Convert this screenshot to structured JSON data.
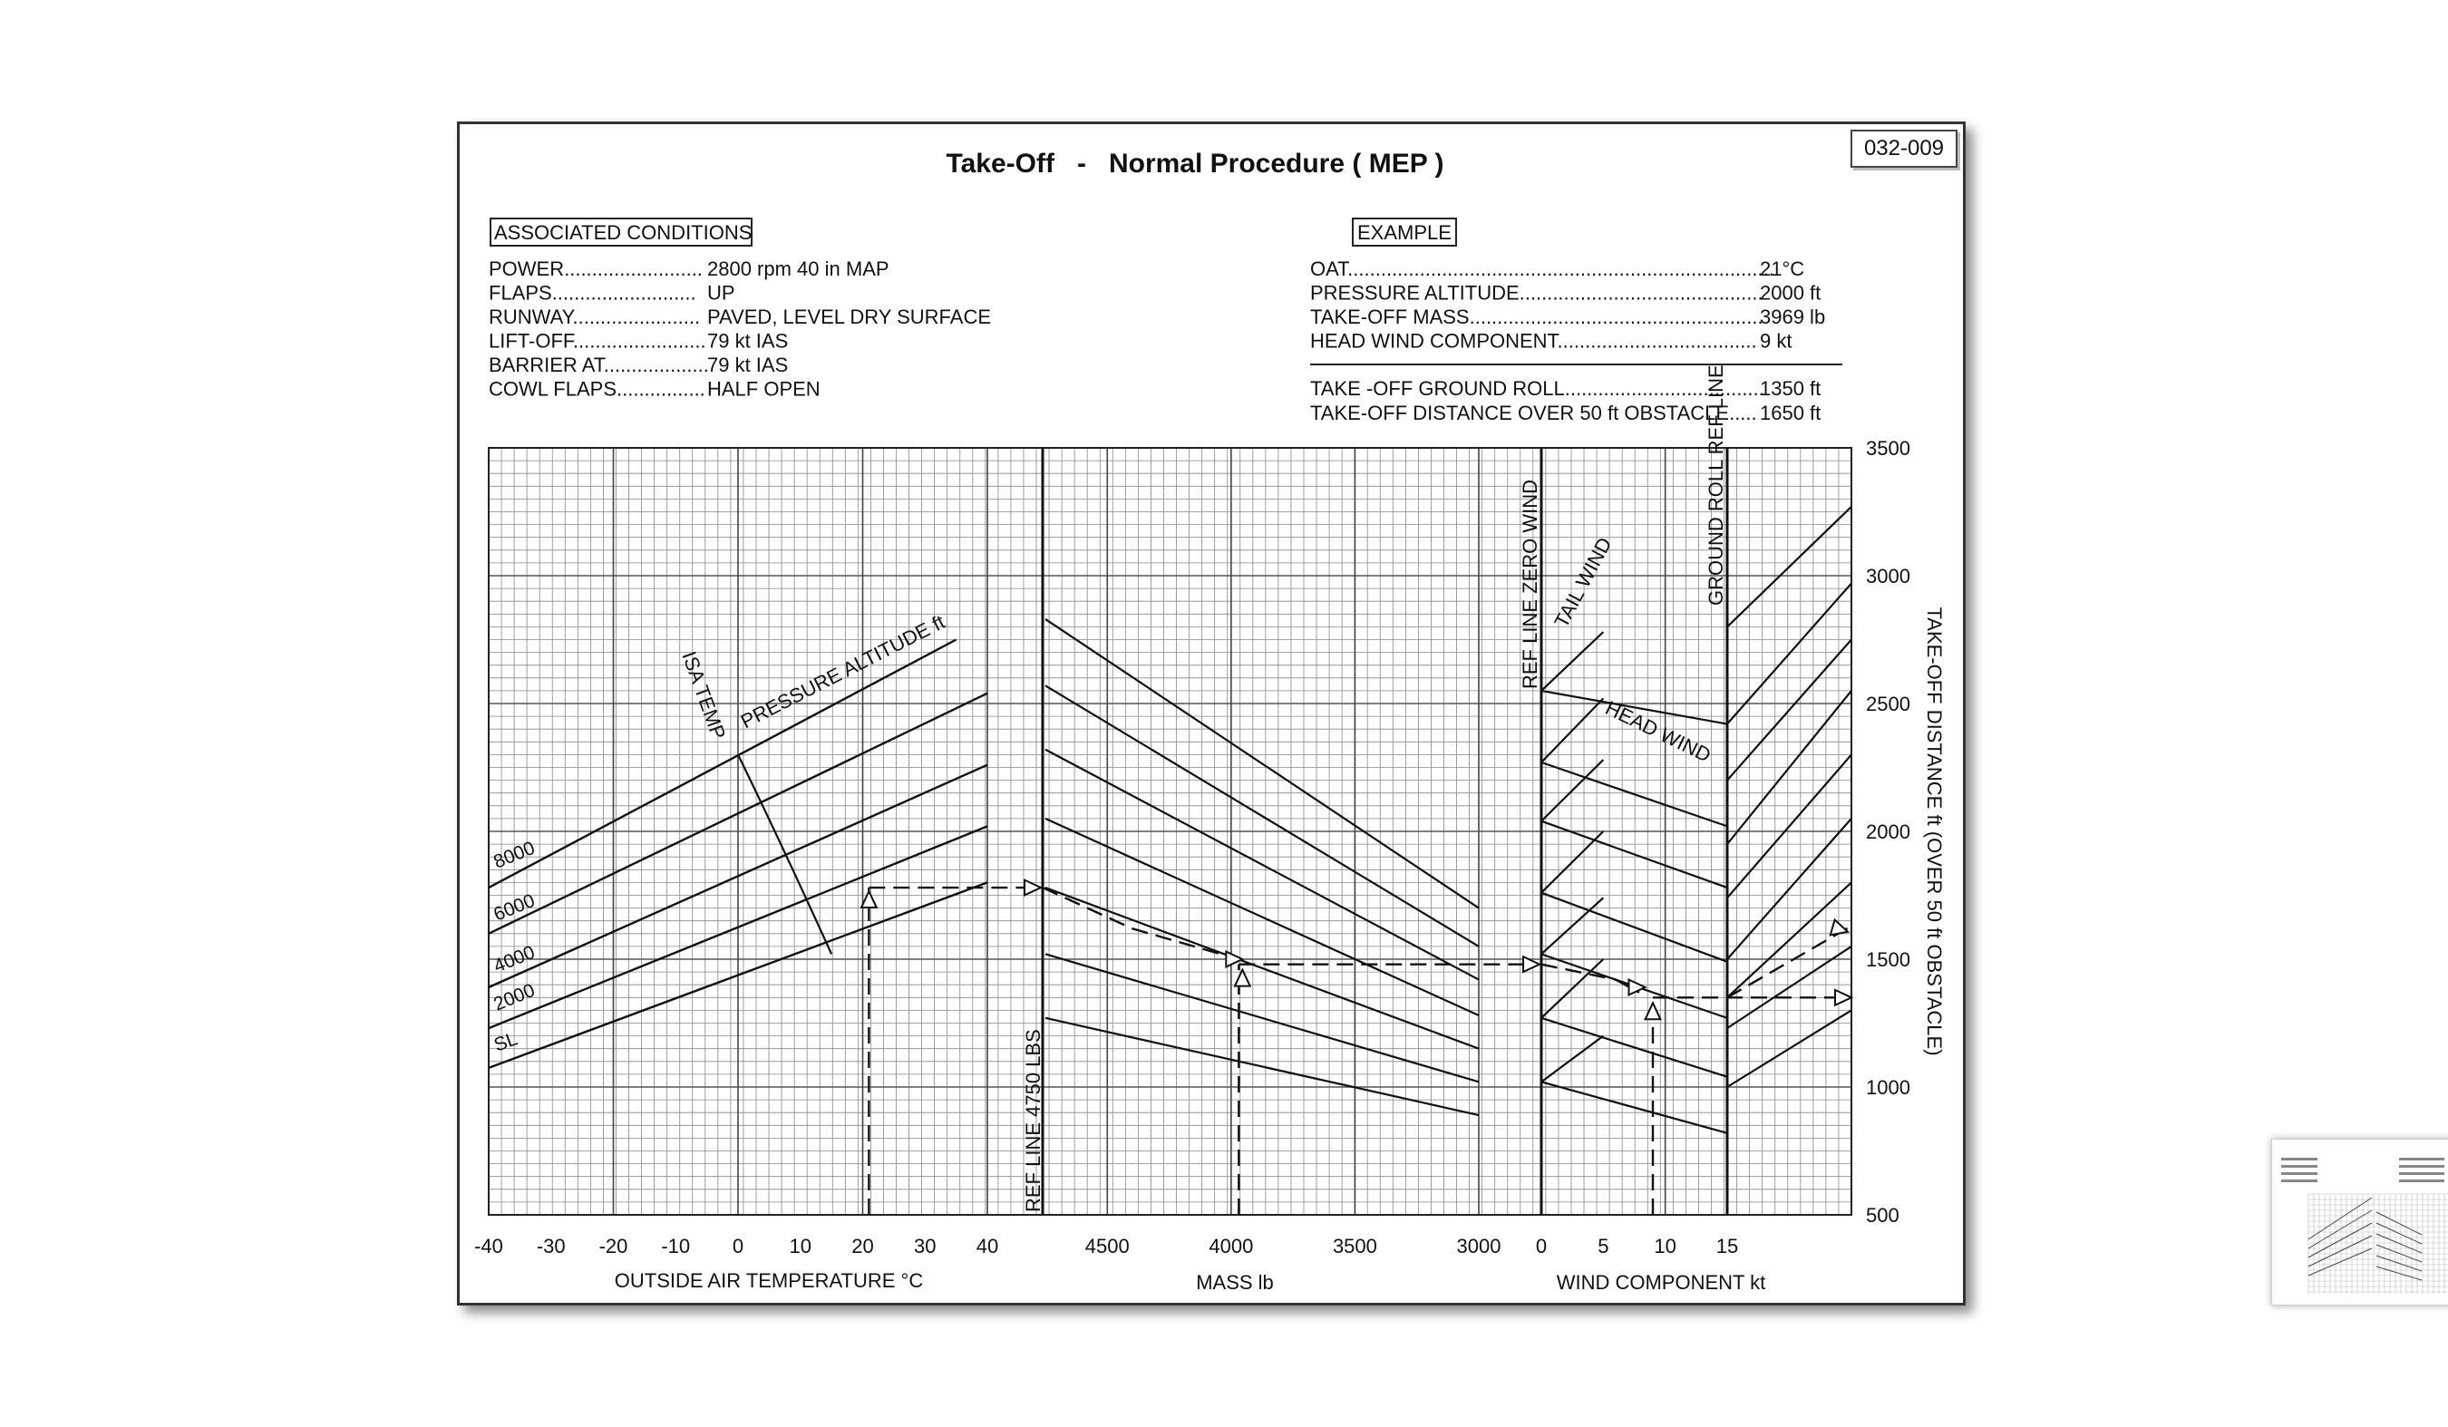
{
  "code": "032-009",
  "title": "Take-Off   -   Normal Procedure ( MEP )",
  "conditions": {
    "heading": "ASSOCIATED CONDITIONS",
    "rows": [
      {
        "label": "POWER.........................",
        "value": "2800 rpm  40 in MAP"
      },
      {
        "label": "FLAPS..........................",
        "value": "UP"
      },
      {
        "label": "RUNWAY.......................",
        "value": "PAVED, LEVEL DRY SURFACE"
      },
      {
        "label": "LIFT-OFF........................",
        "value": "79 kt IAS"
      },
      {
        "label": "BARRIER AT...................",
        "value": "79 kt IAS"
      },
      {
        "label": "COWL FLAPS................",
        "value": "HALF OPEN"
      }
    ]
  },
  "example": {
    "heading": "EXAMPLE",
    "rows": [
      {
        "label": "OAT.............................................................................",
        "value": "21°C"
      },
      {
        "label": "PRESSURE ALTITUDE............................................",
        "value": "2000 ft"
      },
      {
        "label": "TAKE-OFF MASS.....................................................",
        "value": "3969 lb"
      },
      {
        "label": "HEAD WIND COMPONENT....................................",
        "value": "9 kt"
      },
      {
        "label": "TAKE -OFF GROUND ROLL....................................",
        "value": "1350 ft"
      },
      {
        "label": "TAKE-OFF DISTANCE OVER 50 ft OBSTACLE.....",
        "value": "1650 ft"
      }
    ]
  },
  "chart_data": {
    "type": "line",
    "panels": [
      {
        "name": "temperature",
        "xlabel": "OUTSIDE AIR TEMPERATURE  °C",
        "xlim": [
          -40,
          40
        ],
        "ticks": [
          "-40",
          "-30",
          "-20",
          "-10",
          "0",
          "10",
          "20",
          "30",
          "40"
        ],
        "series": [
          {
            "name": "SL",
            "x": [
              -40,
              40
            ],
            "y": [
              1075,
              1800
            ]
          },
          {
            "name": "2000",
            "x": [
              -40,
              40
            ],
            "y": [
              1230,
              2020
            ]
          },
          {
            "name": "4000",
            "x": [
              -40,
              40
            ],
            "y": [
              1390,
              2260
            ]
          },
          {
            "name": "6000",
            "x": [
              -40,
              40
            ],
            "y": [
              1600,
              2540
            ]
          },
          {
            "name": "8000",
            "x": [
              -40,
              35
            ],
            "y": [
              1780,
              2750
            ]
          }
        ],
        "isa_temp": {
          "x": [
            0,
            15
          ],
          "y": [
            2300,
            1520
          ]
        },
        "labels": [
          "PRESSURE ALTITUDE  ft",
          "ISA TEMP"
        ]
      },
      {
        "name": "mass",
        "xlabel": "MASS  lb",
        "xlim": [
          4750,
          3000
        ],
        "ticks": [
          "4500",
          "4000",
          "3500",
          "3000"
        ],
        "ref_line": "REF LINE  4750 LBS",
        "guide_lines": [
          {
            "x": [
              4750,
              3000
            ],
            "y": [
              2830,
              1700
            ]
          },
          {
            "x": [
              4750,
              3000
            ],
            "y": [
              2570,
              1550
            ]
          },
          {
            "x": [
              4750,
              3000
            ],
            "y": [
              2320,
              1420
            ]
          },
          {
            "x": [
              4750,
              3000
            ],
            "y": [
              2050,
              1280
            ]
          },
          {
            "x": [
              4750,
              3000
            ],
            "y": [
              1780,
              1150
            ]
          },
          {
            "x": [
              4750,
              3000
            ],
            "y": [
              1520,
              1020
            ]
          },
          {
            "x": [
              4750,
              3000
            ],
            "y": [
              1270,
              890
            ]
          }
        ]
      },
      {
        "name": "wind",
        "xlabel": "WIND COMPONENT  kt",
        "xlim": [
          0,
          15
        ],
        "ticks": [
          "0",
          "5",
          "10",
          "15"
        ],
        "ref_line": "REF LINE  ZERO WIND",
        "labels": [
          "TAIL WIND",
          "HEAD WIND"
        ],
        "head_wind_lines": [
          {
            "x": [
              0,
              15
            ],
            "y": [
              2550,
              2420
            ]
          },
          {
            "x": [
              0,
              15
            ],
            "y": [
              2270,
              2020
            ]
          },
          {
            "x": [
              0,
              15
            ],
            "y": [
              2040,
              1780
            ]
          },
          {
            "x": [
              0,
              15
            ],
            "y": [
              1760,
              1490
            ]
          },
          {
            "x": [
              0,
              15
            ],
            "y": [
              1520,
              1270
            ]
          },
          {
            "x": [
              0,
              15
            ],
            "y": [
              1270,
              1040
            ]
          },
          {
            "x": [
              0,
              15
            ],
            "y": [
              1020,
              820
            ]
          }
        ],
        "tail_wind_lines": [
          {
            "x": [
              0,
              5
            ],
            "y": [
              2550,
              2780
            ]
          },
          {
            "x": [
              0,
              5
            ],
            "y": [
              2270,
              2520
            ]
          },
          {
            "x": [
              0,
              5
            ],
            "y": [
              2040,
              2280
            ]
          },
          {
            "x": [
              0,
              5
            ],
            "y": [
              1760,
              2000
            ]
          },
          {
            "x": [
              0,
              5
            ],
            "y": [
              1520,
              1740
            ]
          },
          {
            "x": [
              0,
              5
            ],
            "y": [
              1270,
              1500
            ]
          },
          {
            "x": [
              0,
              5
            ],
            "y": [
              1020,
              1200
            ]
          }
        ]
      },
      {
        "name": "ground_roll",
        "ref_line": "GROUND ROLL  REF LINE",
        "guide_lines": [
          {
            "x": [
              0,
              1
            ],
            "y": [
              2800,
              3270
            ]
          },
          {
            "x": [
              0,
              1
            ],
            "y": [
              2420,
              2970
            ]
          },
          {
            "x": [
              0,
              1
            ],
            "y": [
              2200,
              2750
            ]
          },
          {
            "x": [
              0,
              1
            ],
            "y": [
              1950,
              2550
            ]
          },
          {
            "x": [
              0,
              1
            ],
            "y": [
              1740,
              2300
            ]
          },
          {
            "x": [
              0,
              1
            ],
            "y": [
              1500,
              2050
            ]
          },
          {
            "x": [
              0,
              1
            ],
            "y": [
              1350,
              1800
            ]
          },
          {
            "x": [
              0,
              1
            ],
            "y": [
              1230,
              1550
            ]
          },
          {
            "x": [
              0,
              1
            ],
            "y": [
              1000,
              1300
            ]
          }
        ]
      }
    ],
    "y_axis": {
      "label": "TAKE-OFF DISTANCE   ft   (OVER 50 ft  OBSTACLE)",
      "ylim": [
        500,
        3500
      ],
      "ticks": [
        "500",
        "1000",
        "1500",
        "2000",
        "2500",
        "3000",
        "3500"
      ]
    },
    "example_path": {
      "oat": 21,
      "pressure_altitude": 2000,
      "mass": 3969,
      "head_wind": 9,
      "ground_roll": 1350,
      "distance_over_50ft": 1650
    }
  }
}
